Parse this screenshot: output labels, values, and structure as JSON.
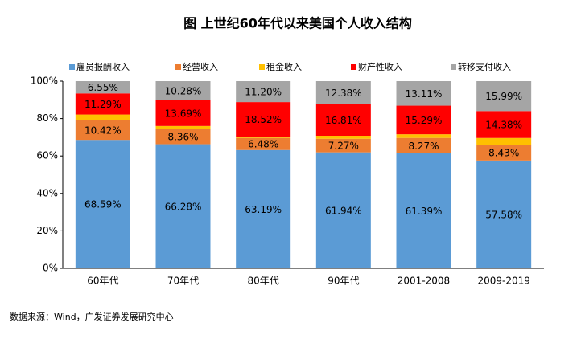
{
  "chart_data": {
    "type": "stacked_bar",
    "title": "图  上世纪60年代以来美国个人收入结构",
    "categories": [
      "60年代",
      "70年代",
      "80年代",
      "90年代",
      "2001-2008",
      "2009-2019"
    ],
    "series": [
      {
        "name": "雇员报酬收入",
        "color": "#5b9bd5",
        "values": [
          68.59,
          66.28,
          63.19,
          61.94,
          61.39,
          57.58
        ],
        "value_labels": [
          "68.59%",
          "66.28%",
          "63.19%",
          "61.94%",
          "61.39%",
          "57.58%"
        ]
      },
      {
        "name": "经营收入",
        "color": "#ed7d31",
        "values": [
          10.42,
          8.36,
          6.48,
          7.27,
          8.27,
          8.43
        ],
        "value_labels": [
          "10.42%",
          "8.36%",
          "6.48%",
          "7.27%",
          "8.27%",
          "8.43%"
        ]
      },
      {
        "name": "租金收入",
        "color": "#ffc000",
        "values": [
          3.15,
          1.39,
          0.61,
          1.6,
          1.94,
          3.62
        ]
      },
      {
        "name": "财产性收入",
        "color": "#ff0000",
        "values": [
          11.29,
          13.69,
          18.52,
          16.81,
          15.29,
          14.38
        ],
        "value_labels": [
          "11.29%",
          "13.69%",
          "18.52%",
          "16.81%",
          "15.29%",
          "14.38%"
        ]
      },
      {
        "name": "转移支付收入",
        "color": "#a5a5a5",
        "values": [
          6.55,
          10.28,
          11.2,
          12.38,
          13.11,
          15.99
        ],
        "value_labels": [
          "6.55%",
          "10.28%",
          "11.20%",
          "12.38%",
          "13.11%",
          "15.99%"
        ]
      }
    ],
    "ylim": [
      0,
      100
    ],
    "yticks": [
      {
        "value": 0,
        "label": "0%"
      },
      {
        "value": 20,
        "label": "20%"
      },
      {
        "value": 40,
        "label": "40%"
      },
      {
        "value": 60,
        "label": "60%"
      },
      {
        "value": 80,
        "label": "80%"
      },
      {
        "value": 100,
        "label": "100%"
      }
    ],
    "legend": "top",
    "source": "数据来源：Wind，广发证券发展研究中心"
  }
}
